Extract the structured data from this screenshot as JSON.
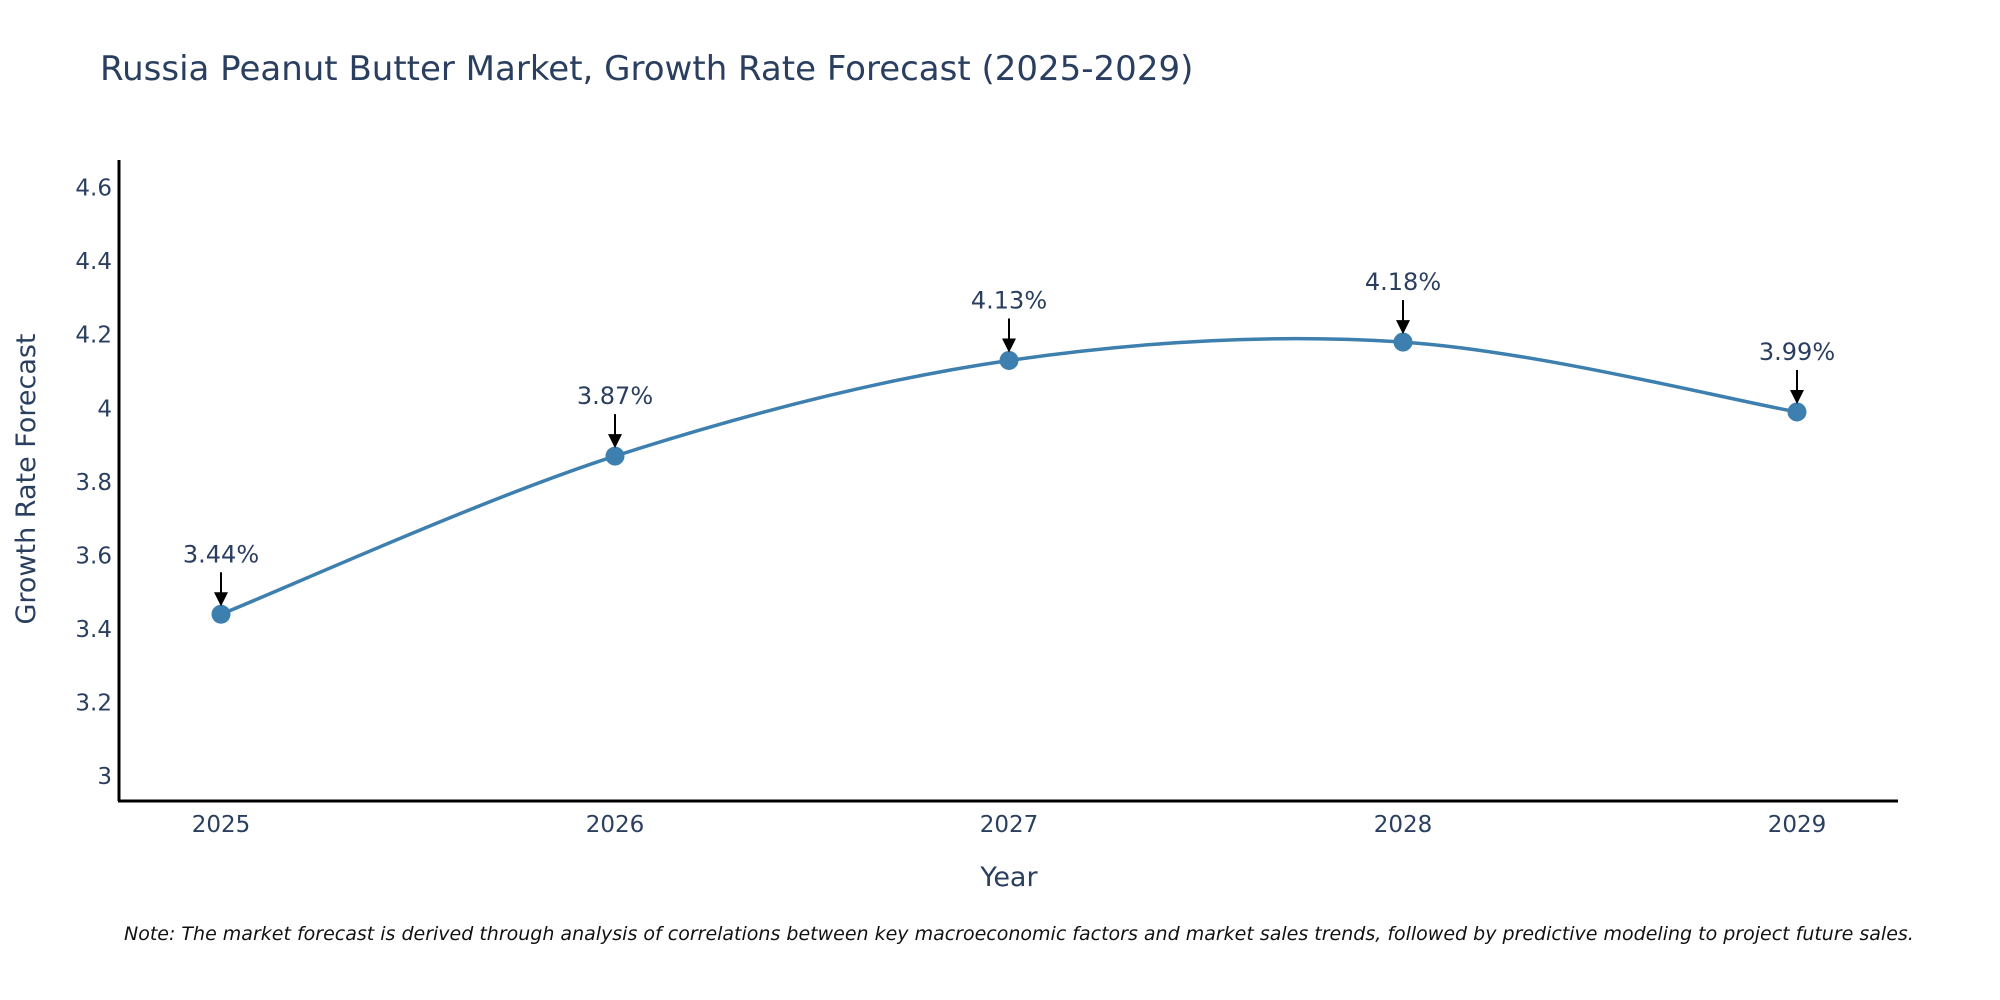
{
  "chart_data": {
    "type": "line",
    "title": "Russia Peanut Butter Market, Growth Rate Forecast (2025-2029)",
    "xlabel": "Year",
    "ylabel": "Growth Rate Forecast",
    "categories": [
      "2025",
      "2026",
      "2027",
      "2028",
      "2029"
    ],
    "series": [
      {
        "name": "Growth Rate Forecast",
        "values": [
          3.44,
          3.87,
          4.13,
          4.18,
          3.99
        ],
        "color": "#3d7fae"
      }
    ],
    "data_labels": [
      "3.44%",
      "3.87%",
      "4.13%",
      "4.18%",
      "3.99%"
    ],
    "yticks": [
      3,
      3.2,
      3.4,
      3.6,
      3.8,
      4,
      4.2,
      4.4,
      4.6
    ],
    "ytick_labels": [
      "3",
      "3.2",
      "3.4",
      "3.6",
      "3.8",
      "4",
      "4.2",
      "4.4",
      "4.6"
    ],
    "ylim": [
      2.935,
      4.675
    ],
    "grid": false,
    "note": "Note: The market forecast is derived through analysis of correlations between key macroeconomic factors and market sales trends, followed by predictive modeling to project future sales."
  }
}
